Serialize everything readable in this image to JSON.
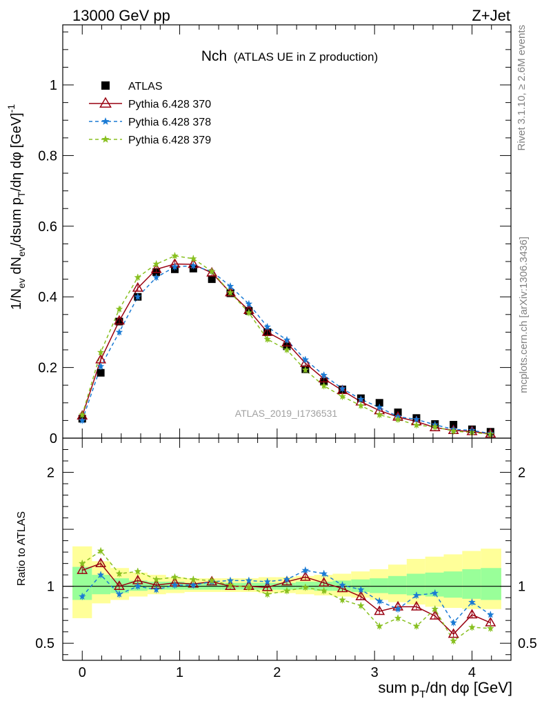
{
  "header": {
    "energy_label": "13000 GeV pp",
    "process_label": "Z+Jet"
  },
  "side_labels": {
    "rivet": "Rivet 3.1.10, ≥ 2.6M events",
    "mcplots": "mcplots.cern.ch [arXiv:1306.3436]"
  },
  "watermark": "ATLAS_2019_I1736531",
  "colors": {
    "atlas": "#000000",
    "p370": "#990011",
    "p378": "#1a7ad4",
    "p379": "#88c020",
    "band_outer": "#ffff99",
    "band_inner": "#99ff99"
  },
  "chart_data": [
    {
      "type": "scatter",
      "title": "Nch",
      "subtitle": "(ATLAS UE in Z production)",
      "ylabel": "1/N_ev dN_ev/dsum p_T/dη dφ [GeV]^-1",
      "xlim": [
        -0.2,
        4.4
      ],
      "ylim": [
        0,
        1.17
      ],
      "yticks": [
        "0",
        "0.2",
        "0.4",
        "0.6",
        "0.8",
        "1"
      ],
      "x": [
        0.0,
        0.19,
        0.38,
        0.57,
        0.76,
        0.95,
        1.14,
        1.33,
        1.52,
        1.71,
        1.9,
        2.1,
        2.29,
        2.48,
        2.67,
        2.86,
        3.05,
        3.24,
        3.43,
        3.62,
        3.81,
        4.0,
        4.19
      ],
      "series": [
        {
          "name": "ATLAS",
          "marker": "square",
          "values": [
            0.055,
            0.185,
            0.33,
            0.4,
            0.47,
            0.478,
            0.48,
            0.45,
            0.41,
            0.36,
            0.3,
            0.26,
            0.195,
            0.16,
            0.138,
            0.113,
            0.1,
            0.073,
            0.057,
            0.04,
            0.038,
            0.025,
            0.018
          ]
        },
        {
          "name": "Pythia 6.428 370",
          "marker": "triangle",
          "values": [
            0.063,
            0.222,
            0.332,
            0.425,
            0.478,
            0.493,
            0.492,
            0.468,
            0.412,
            0.362,
            0.3,
            0.27,
            0.212,
            0.168,
            0.135,
            0.103,
            0.078,
            0.06,
            0.047,
            0.03,
            0.022,
            0.019,
            0.012
          ]
        },
        {
          "name": "Pythia 6.428 378",
          "marker": "star",
          "values": [
            0.05,
            0.203,
            0.3,
            0.4,
            0.455,
            0.485,
            0.488,
            0.472,
            0.43,
            0.38,
            0.315,
            0.278,
            0.222,
            0.178,
            0.14,
            0.11,
            0.087,
            0.061,
            0.053,
            0.038,
            0.025,
            0.022,
            0.013
          ]
        },
        {
          "name": "Pythia 6.428 379",
          "marker": "star",
          "values": [
            0.066,
            0.243,
            0.365,
            0.455,
            0.493,
            0.516,
            0.508,
            0.472,
            0.412,
            0.355,
            0.28,
            0.25,
            0.193,
            0.148,
            0.118,
            0.092,
            0.066,
            0.053,
            0.037,
            0.032,
            0.02,
            0.016,
            0.011
          ]
        }
      ]
    },
    {
      "type": "line",
      "xlabel": "sum p_T/dη dφ [GeV]",
      "ylabel": "Ratio to ATLAS",
      "xlim": [
        -0.2,
        4.4
      ],
      "ylim": [
        0.35,
        2.3
      ],
      "yticks": [
        "0.5",
        "1",
        "2"
      ],
      "xticks": [
        "0",
        "1",
        "2",
        "3",
        "4"
      ],
      "x": [
        0.0,
        0.19,
        0.38,
        0.57,
        0.76,
        0.95,
        1.14,
        1.33,
        1.52,
        1.71,
        1.9,
        2.1,
        2.29,
        2.48,
        2.67,
        2.86,
        3.05,
        3.24,
        3.43,
        3.62,
        3.81,
        4.0,
        4.19
      ],
      "bands": {
        "edges": [
          -0.1,
          0.1,
          0.29,
          0.48,
          0.67,
          0.86,
          1.05,
          1.24,
          1.43,
          1.62,
          1.81,
          2.0,
          2.19,
          2.38,
          2.57,
          2.76,
          2.95,
          3.14,
          3.33,
          3.52,
          3.71,
          3.9,
          4.09,
          4.3
        ],
        "outer_lo": [
          0.72,
          0.85,
          0.88,
          0.91,
          0.93,
          0.94,
          0.95,
          0.95,
          0.95,
          0.95,
          0.94,
          0.94,
          0.93,
          0.92,
          0.91,
          0.9,
          0.88,
          0.86,
          0.84,
          0.82,
          0.81,
          0.8,
          0.8
        ],
        "outer_hi": [
          1.35,
          1.22,
          1.16,
          1.12,
          1.1,
          1.08,
          1.07,
          1.07,
          1.07,
          1.07,
          1.08,
          1.08,
          1.09,
          1.1,
          1.11,
          1.13,
          1.15,
          1.19,
          1.24,
          1.26,
          1.28,
          1.31,
          1.33
        ],
        "inner_lo": [
          0.88,
          0.93,
          0.94,
          0.96,
          0.97,
          0.97,
          0.97,
          0.97,
          0.97,
          0.97,
          0.97,
          0.97,
          0.97,
          0.96,
          0.96,
          0.95,
          0.94,
          0.93,
          0.92,
          0.91,
          0.9,
          0.89,
          0.88
        ],
        "inner_hi": [
          1.17,
          1.1,
          1.07,
          1.05,
          1.04,
          1.04,
          1.03,
          1.03,
          1.03,
          1.03,
          1.03,
          1.03,
          1.04,
          1.04,
          1.05,
          1.06,
          1.07,
          1.09,
          1.11,
          1.12,
          1.13,
          1.15,
          1.16
        ]
      },
      "series": [
        {
          "name": "Pythia 6.428 370",
          "values": [
            1.14,
            1.2,
            1.0,
            1.05,
            1.01,
            1.03,
            1.02,
            1.04,
            1.0,
            1.0,
            0.99,
            1.04,
            1.08,
            1.03,
            0.98,
            0.91,
            0.78,
            0.82,
            0.82,
            0.74,
            0.58,
            0.75,
            0.68
          ]
        },
        {
          "name": "Pythia 6.428 378",
          "values": [
            0.91,
            1.1,
            0.93,
            1.0,
            0.97,
            1.01,
            1.01,
            1.04,
            1.05,
            1.05,
            1.04,
            1.06,
            1.14,
            1.11,
            1.01,
            0.97,
            0.87,
            0.8,
            0.92,
            0.94,
            0.68,
            0.86,
            0.75
          ]
        },
        {
          "name": "Pythia 6.428 379",
          "values": [
            1.2,
            1.31,
            1.11,
            1.13,
            1.06,
            1.08,
            1.06,
            1.05,
            1.01,
            0.99,
            0.93,
            0.96,
            0.99,
            0.96,
            0.88,
            0.83,
            0.65,
            0.72,
            0.65,
            0.8,
            0.52,
            0.64,
            0.63
          ]
        }
      ]
    }
  ]
}
